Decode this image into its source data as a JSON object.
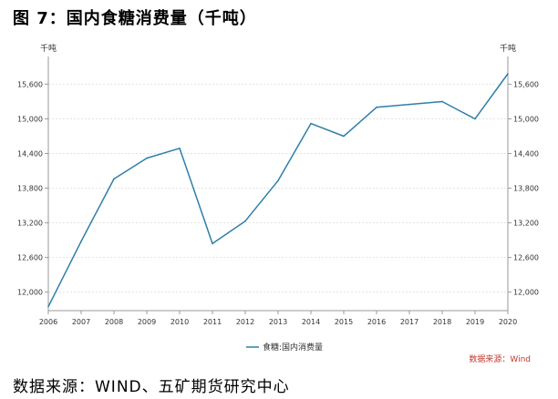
{
  "figure_title": "图 7：国内食糖消费量（千吨）",
  "source_note": "数据来源：WIND、五矿期货研究中心",
  "chart_data": {
    "type": "line",
    "unit_left": "千吨",
    "unit_right": "千吨",
    "x": [
      "2006",
      "2007",
      "2008",
      "2009",
      "2010",
      "2011",
      "2012",
      "2013",
      "2014",
      "2015",
      "2016",
      "2017",
      "2018",
      "2019",
      "2020"
    ],
    "series": [
      {
        "name": "食糖:国内消费量",
        "color": "#2e7fa8",
        "values": [
          11750,
          12880,
          13960,
          14320,
          14490,
          12840,
          13230,
          13930,
          14920,
          14700,
          15200,
          15250,
          15300,
          15000,
          15780
        ]
      }
    ],
    "yticks": [
      12000,
      12600,
      13200,
      13800,
      14400,
      15000,
      15600
    ],
    "ytick_labels": [
      "12,000",
      "12,600",
      "13,200",
      "13,800",
      "14,400",
      "15,000",
      "15,600"
    ],
    "ylim": [
      11680,
      16080
    ],
    "grid": true,
    "legend_position": "bottom-center",
    "source_label": "数据来源：Wind",
    "source_color": "#c0392b"
  }
}
